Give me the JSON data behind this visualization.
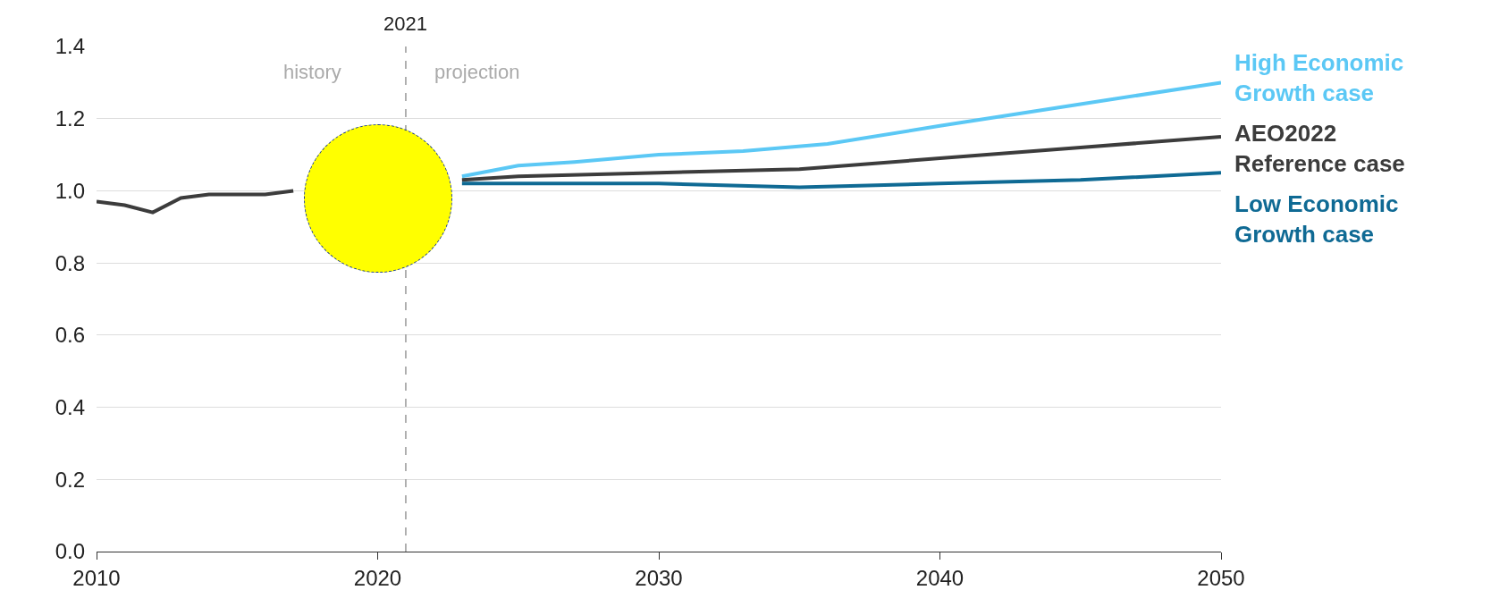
{
  "chart_data": {
    "type": "line",
    "xlim": [
      2010,
      2050
    ],
    "xticks": [
      2010,
      2020,
      2030,
      2040,
      2050
    ],
    "ylim": [
      0,
      1.4
    ],
    "yticks": [
      {
        "value": 0,
        "label": "0.0"
      },
      {
        "value": 0.2,
        "label": "0.2"
      },
      {
        "value": 0.4,
        "label": "0.4"
      },
      {
        "value": 0.6,
        "label": "0.6"
      },
      {
        "value": 0.8,
        "label": "0.8"
      },
      {
        "value": 1,
        "label": "1.0"
      },
      {
        "value": 1.2,
        "label": "1.2"
      },
      {
        "value": 1.4,
        "label": "1.4"
      }
    ],
    "grid": "y",
    "legend": false,
    "line_style": "solid",
    "marker": "none",
    "series": [
      {
        "name": "High Economic Growth case",
        "color": "#5bc8f5",
        "x": [
          2023,
          2025,
          2027,
          2030,
          2033,
          2036,
          2040,
          2045,
          2050
        ],
        "values": [
          1.04,
          1.07,
          1.08,
          1.1,
          1.11,
          1.13,
          1.18,
          1.24,
          1.3
        ]
      },
      {
        "name": "AEO2022 Reference case",
        "color": "#3c3c3c",
        "x": [
          2010,
          2011,
          2012,
          2013,
          2014,
          2015,
          2016,
          2017,
          2018,
          2022,
          2023,
          2025,
          2030,
          2035,
          2040,
          2045,
          2050
        ],
        "values": [
          0.97,
          0.96,
          0.94,
          0.98,
          0.99,
          0.99,
          0.99,
          1.0,
          null,
          null,
          1.03,
          1.04,
          1.05,
          1.06,
          1.09,
          1.12,
          1.15
        ]
      },
      {
        "name": "Low Economic Growth case",
        "color": "#0f6a94",
        "x": [
          2023,
          2026,
          2030,
          2035,
          2040,
          2045,
          2050
        ],
        "values": [
          1.02,
          1.02,
          1.02,
          1.01,
          1.02,
          1.03,
          1.05
        ]
      }
    ],
    "ref_lines": [
      {
        "axis": "x",
        "value": 2021,
        "label": "2021",
        "color": "#999999",
        "line_style": "dashed"
      }
    ],
    "annotations": [
      "history",
      "projection"
    ]
  }
}
